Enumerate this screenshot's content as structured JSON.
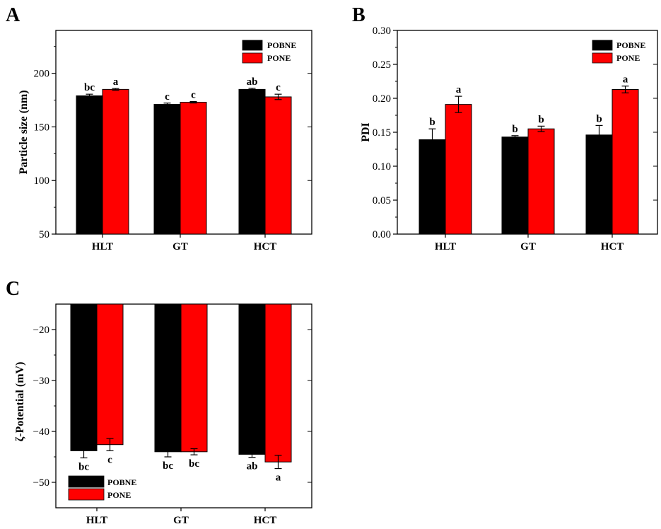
{
  "colors": {
    "POBNE": "#000000",
    "PONE": "#ff0000",
    "axis": "#000000",
    "background": "#ffffff"
  },
  "chart_data": [
    {
      "panel": "A",
      "type": "bar",
      "categories": [
        "HLT",
        "GT",
        "HCT"
      ],
      "ylabel": "Particle size (nm)",
      "xlabel": "",
      "ylim": [
        50,
        240
      ],
      "yticks": [
        50,
        100,
        150,
        200
      ],
      "yticklabels": [
        "50",
        "100",
        "150",
        "200"
      ],
      "legend": {
        "position": "top-right",
        "entries": [
          "POBNE",
          "PONE"
        ]
      },
      "series": [
        {
          "name": "POBNE",
          "values": [
            179,
            171,
            185
          ],
          "errors": [
            1.5,
            1.2,
            1.0
          ],
          "letters": [
            "bc",
            "c",
            "ab"
          ]
        },
        {
          "name": "PONE",
          "values": [
            185,
            173,
            178
          ],
          "errors": [
            0.8,
            0.7,
            2.5
          ],
          "letters": [
            "a",
            "c",
            "c"
          ]
        }
      ]
    },
    {
      "panel": "B",
      "type": "bar",
      "categories": [
        "HLT",
        "GT",
        "HCT"
      ],
      "ylabel": "PDI",
      "xlabel": "",
      "ylim": [
        0,
        0.3
      ],
      "yticks": [
        0,
        0.05,
        0.1,
        0.15,
        0.2,
        0.25,
        0.3
      ],
      "yticklabels": [
        "0.00",
        "0.05",
        "0.10",
        "0.15",
        "0.20",
        "0.25",
        "0.30"
      ],
      "legend": {
        "position": "top-right",
        "entries": [
          "POBNE",
          "PONE"
        ]
      },
      "series": [
        {
          "name": "POBNE",
          "values": [
            0.139,
            0.143,
            0.146
          ],
          "errors": [
            0.016,
            0.002,
            0.014
          ],
          "letters": [
            "b",
            "b",
            "b"
          ]
        },
        {
          "name": "PONE",
          "values": [
            0.191,
            0.155,
            0.213
          ],
          "errors": [
            0.012,
            0.004,
            0.005
          ],
          "letters": [
            "a",
            "b",
            "a"
          ]
        }
      ]
    },
    {
      "panel": "C",
      "type": "bar",
      "categories": [
        "HLT",
        "GT",
        "HCT"
      ],
      "ylabel": "ζ-Potential (mV)",
      "xlabel": "",
      "ylim": [
        -55,
        -15
      ],
      "yticks": [
        -50,
        -40,
        -30,
        -20
      ],
      "yticklabels": [
        "−50",
        "−40",
        "−30",
        "−20"
      ],
      "legend": {
        "position": "bottom-left",
        "entries": [
          "POBNE",
          "PONE"
        ]
      },
      "series": [
        {
          "name": "POBNE",
          "values": [
            -43.8,
            -44.0,
            -44.5
          ],
          "errors": [
            1.4,
            1.0,
            0.6
          ],
          "letters": [
            "bc",
            "bc",
            "ab"
          ]
        },
        {
          "name": "PONE",
          "values": [
            -42.6,
            -44.0,
            -46.0
          ],
          "errors": [
            1.2,
            0.6,
            1.3
          ],
          "letters": [
            "c",
            "bc",
            "a"
          ]
        }
      ]
    }
  ]
}
